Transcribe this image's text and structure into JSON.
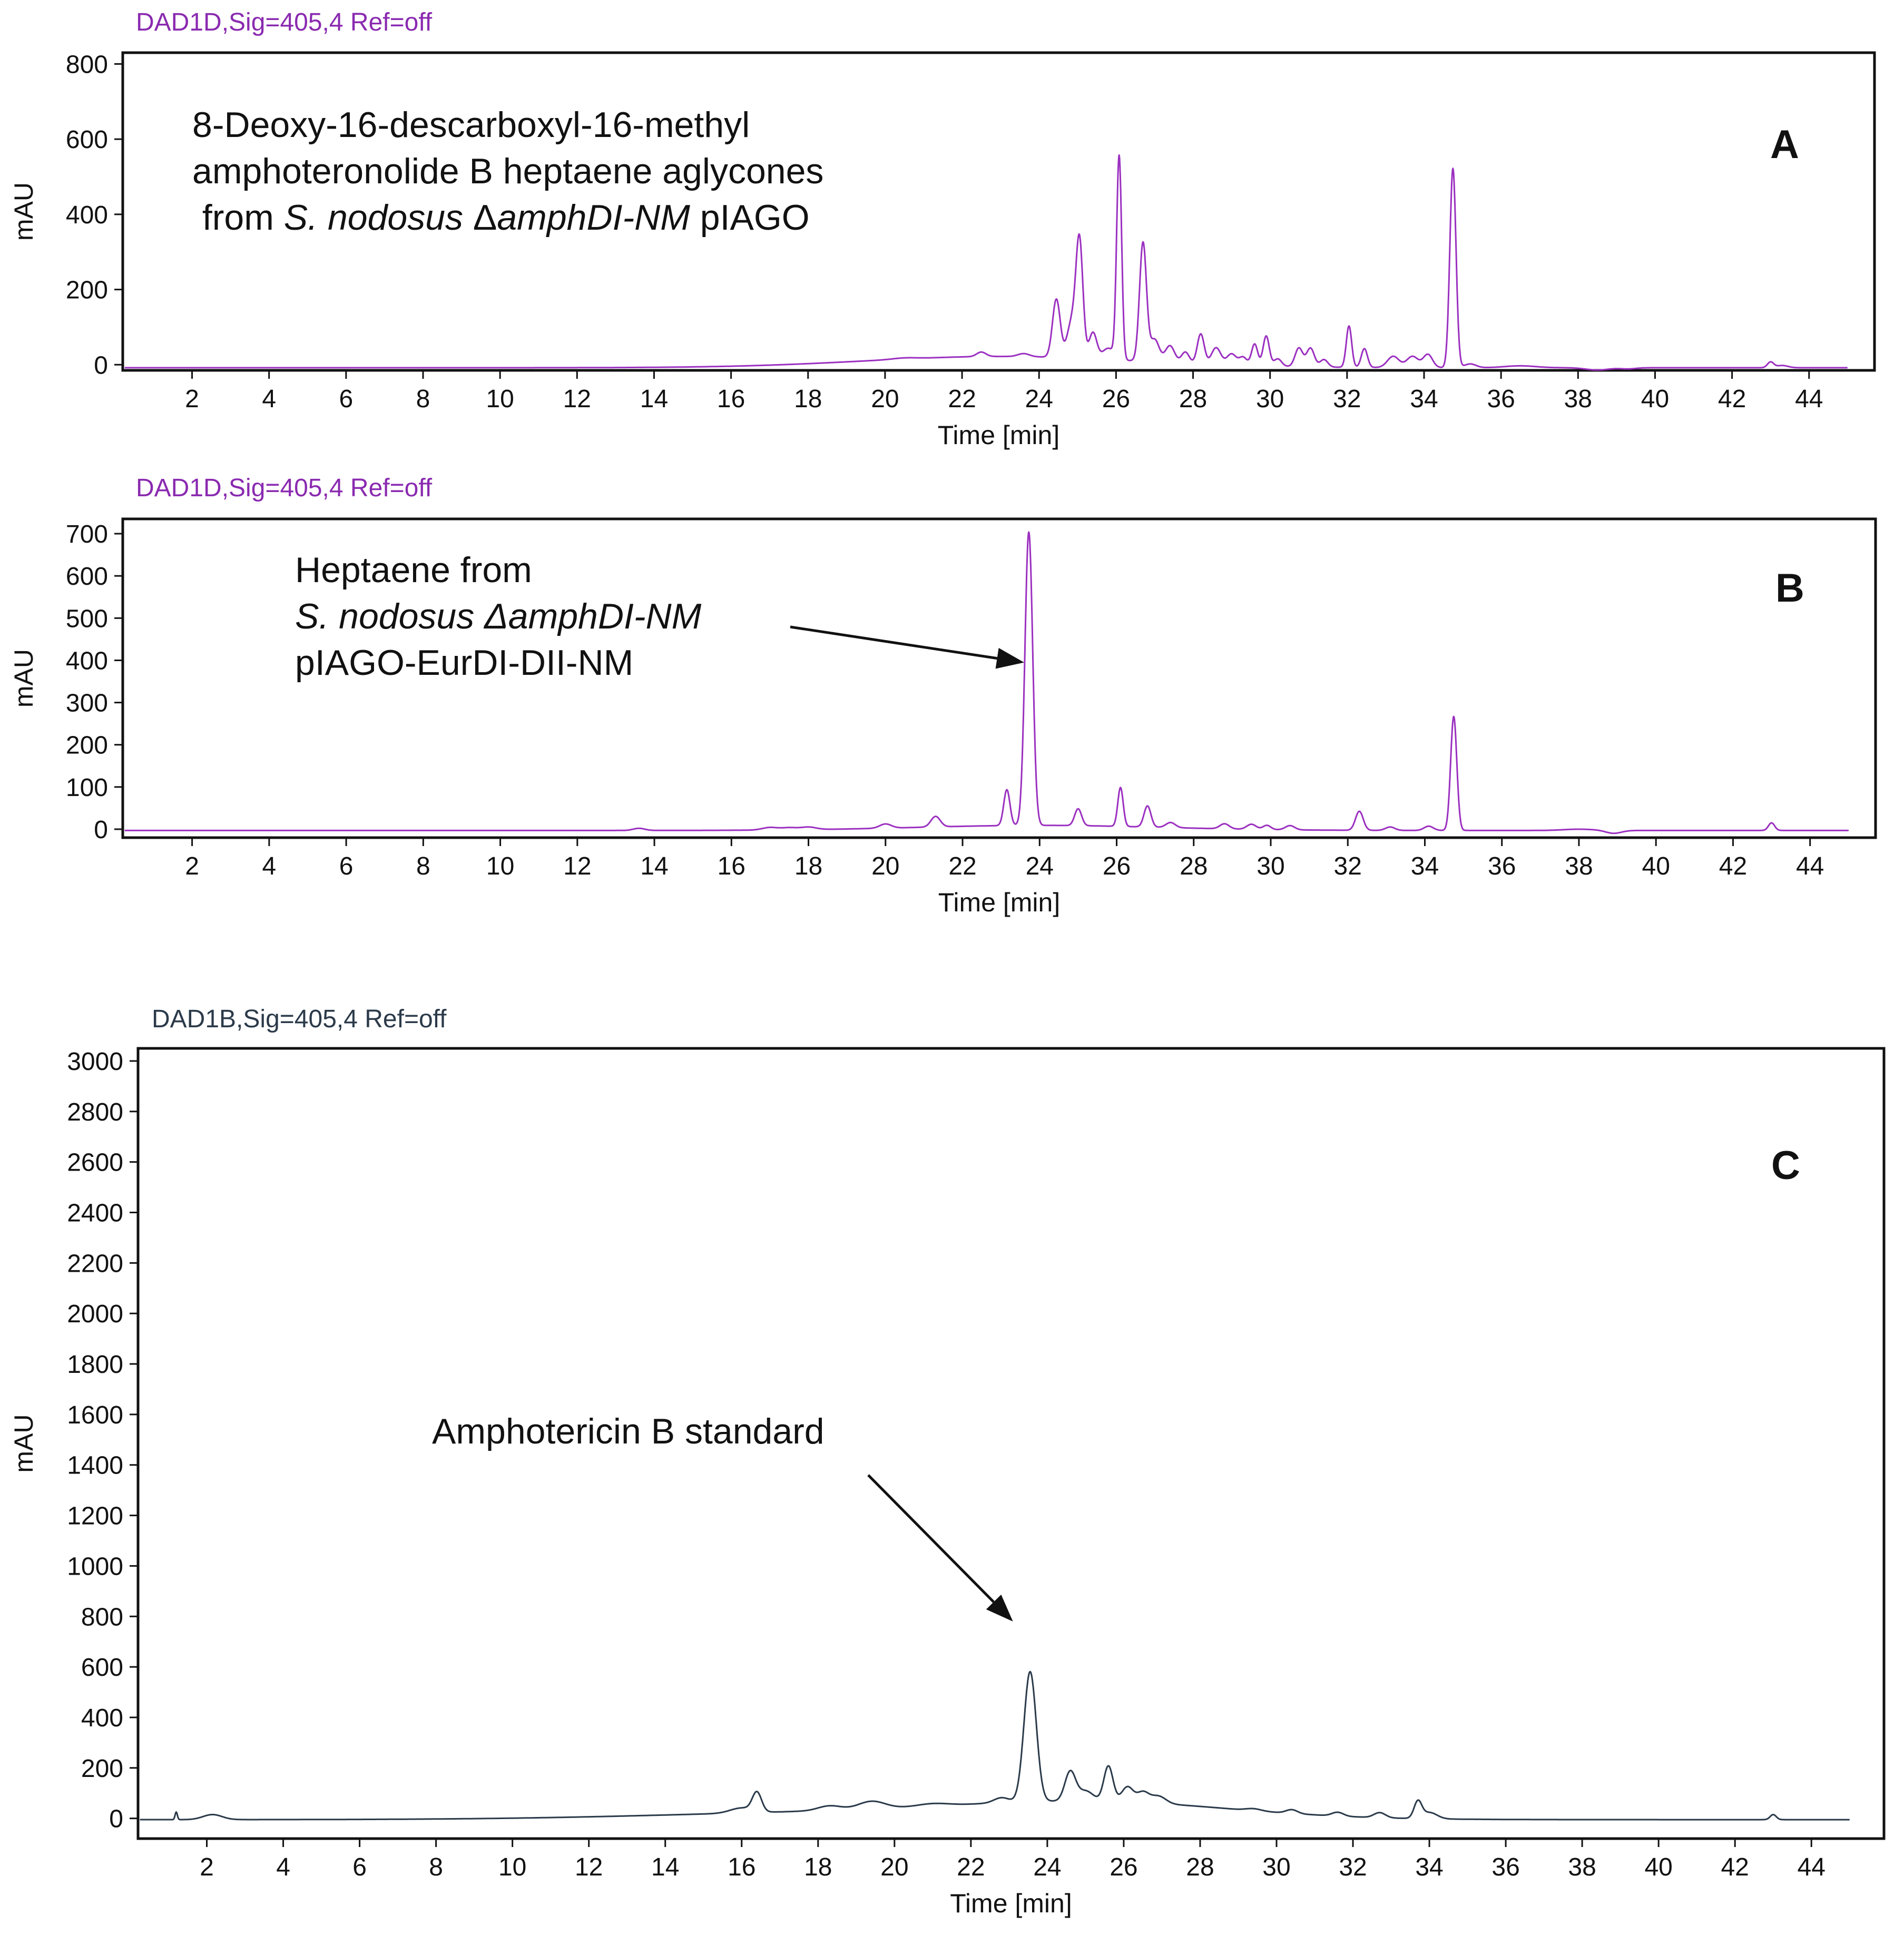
{
  "chart_data": [
    {
      "type": "line",
      "panel": "A",
      "signal": "DAD1D,Sig=405,4  Ref=off",
      "signal_color": "#8a2ab0",
      "line_color": "#9b30c0",
      "xlabel": "Time [min]",
      "ylabel": "mAU",
      "xlim": [
        0.2,
        45.7
      ],
      "ylim": [
        -15,
        830
      ],
      "xticks": [
        2,
        4,
        6,
        8,
        10,
        12,
        14,
        16,
        18,
        20,
        22,
        24,
        26,
        28,
        30,
        32,
        34,
        36,
        38,
        40,
        42,
        44
      ],
      "yticks": [
        0,
        200,
        400,
        600,
        800
      ],
      "annotation": [
        [
          {
            "t": "8-Deoxy-16-descarboxyl-16-methyl"
          }
        ],
        [
          {
            "t": "amphoteronolide B heptaene aglycones"
          }
        ],
        [
          {
            "t": " from "
          },
          {
            "t": "S. nodosus",
            "i": true
          },
          {
            "t": " Δ"
          },
          {
            "t": "amphDI-NM",
            "i": true
          },
          {
            "t": " pIAGO"
          }
        ]
      ],
      "baseline": -8,
      "end": 45,
      "peaks": [
        [
          20.5,
          3,
          0.3
        ],
        [
          22.5,
          12,
          0.12
        ],
        [
          23.6,
          8,
          0.15
        ],
        [
          24.45,
          155,
          0.1
        ],
        [
          24.85,
          95,
          0.12
        ],
        [
          25.05,
          305,
          0.09
        ],
        [
          25.4,
          70,
          0.1
        ],
        [
          25.8,
          30,
          0.15
        ],
        [
          26.08,
          540,
          0.065
        ],
        [
          26.7,
          315,
          0.09
        ],
        [
          27.0,
          60,
          0.12
        ],
        [
          27.4,
          45,
          0.12
        ],
        [
          27.8,
          30,
          0.1
        ],
        [
          28.2,
          80,
          0.09
        ],
        [
          28.6,
          45,
          0.12
        ],
        [
          29.0,
          30,
          0.12
        ],
        [
          29.3,
          22,
          0.1
        ],
        [
          29.6,
          58,
          0.08
        ],
        [
          29.9,
          80,
          0.08
        ],
        [
          30.2,
          20,
          0.1
        ],
        [
          30.75,
          50,
          0.1
        ],
        [
          31.05,
          50,
          0.1
        ],
        [
          31.4,
          20,
          0.1
        ],
        [
          32.05,
          110,
          0.07
        ],
        [
          32.45,
          50,
          0.08
        ],
        [
          33.2,
          30,
          0.15
        ],
        [
          33.7,
          30,
          0.15
        ],
        [
          34.1,
          35,
          0.12
        ],
        [
          34.75,
          530,
          0.08
        ],
        [
          35.2,
          10,
          0.15
        ],
        [
          36.5,
          5,
          0.4
        ],
        [
          38.5,
          -6,
          0.3
        ],
        [
          39.3,
          -3,
          0.2
        ],
        [
          43.0,
          15,
          0.08
        ],
        [
          43.3,
          6,
          0.15
        ]
      ],
      "humps": [
        [
          23,
          30,
          10,
          3.5
        ]
      ],
      "label": "A"
    },
    {
      "type": "line",
      "panel": "B",
      "signal": "DAD1D,Sig=405,4  Ref=off",
      "signal_color": "#8a2ab0",
      "line_color": "#9b30c0",
      "xlabel": "Time [min]",
      "ylabel": "mAU",
      "xlim": [
        0.2,
        45.7
      ],
      "ylim": [
        -20,
        735
      ],
      "xticks": [
        2,
        4,
        6,
        8,
        10,
        12,
        14,
        16,
        18,
        20,
        22,
        24,
        26,
        28,
        30,
        32,
        34,
        36,
        38,
        40,
        42,
        44
      ],
      "yticks": [
        0,
        100,
        200,
        300,
        400,
        500,
        600,
        700
      ],
      "annotation": [
        [
          {
            "t": "Heptaene from"
          }
        ],
        [
          {
            "t": "S. nodosus ΔamphDI-NM",
            "i": true
          }
        ],
        [
          {
            "t": "pIAGO-EurDI-DII-NM"
          }
        ]
      ],
      "arrow_target": [
        23.6,
        395
      ],
      "baseline": -3,
      "end": 45,
      "peaks": [
        [
          13.6,
          5,
          0.15
        ],
        [
          17.0,
          6,
          0.2
        ],
        [
          17.5,
          5,
          0.2
        ],
        [
          18.0,
          6,
          0.2
        ],
        [
          20.0,
          10,
          0.15
        ],
        [
          21.3,
          25,
          0.12
        ],
        [
          23.15,
          85,
          0.08
        ],
        [
          23.72,
          695,
          0.1
        ],
        [
          25.0,
          40,
          0.09
        ],
        [
          26.1,
          92,
          0.07
        ],
        [
          26.8,
          50,
          0.09
        ],
        [
          27.4,
          12,
          0.12
        ],
        [
          28.8,
          12,
          0.12
        ],
        [
          29.5,
          12,
          0.12
        ],
        [
          29.9,
          10,
          0.1
        ],
        [
          30.5,
          10,
          0.12
        ],
        [
          32.3,
          45,
          0.1
        ],
        [
          33.1,
          8,
          0.12
        ],
        [
          34.1,
          10,
          0.12
        ],
        [
          34.75,
          270,
          0.08
        ],
        [
          38.0,
          3,
          0.4
        ],
        [
          38.9,
          -7,
          0.2
        ],
        [
          43.0,
          18,
          0.08
        ]
      ],
      "humps": [
        [
          24,
          12,
          6,
          3.2
        ]
      ],
      "label": "B"
    },
    {
      "type": "line",
      "panel": "C",
      "signal": "DAD1B,Sig=405,4  Ref=off",
      "signal_color": "#2b3a4a",
      "line_color": "#2a3a4a",
      "xlabel": "Time [min]",
      "ylabel": "mAU",
      "xlim": [
        0.2,
        45.9
      ],
      "ylim": [
        -80,
        3050
      ],
      "xticks": [
        2,
        4,
        6,
        8,
        10,
        12,
        14,
        16,
        18,
        20,
        22,
        24,
        26,
        28,
        30,
        32,
        34,
        36,
        38,
        40,
        42,
        44
      ],
      "yticks": [
        0,
        200,
        400,
        600,
        800,
        1000,
        1200,
        1400,
        1600,
        1800,
        2000,
        2200,
        2400,
        2600,
        2800,
        3000
      ],
      "annotation": [
        [
          {
            "t": "Amphotericin B standard"
          }
        ]
      ],
      "arrow_target": [
        23.1,
        780
      ],
      "baseline": -5,
      "end": 45,
      "peaks": [
        [
          1.2,
          30,
          0.03
        ],
        [
          2.15,
          20,
          0.25
        ],
        [
          16.4,
          75,
          0.12
        ],
        [
          16.0,
          20,
          0.3
        ],
        [
          18.3,
          18,
          0.3
        ],
        [
          19.4,
          30,
          0.35
        ],
        [
          21.0,
          10,
          0.4
        ],
        [
          22.8,
          20,
          0.2
        ],
        [
          23.55,
          515,
          0.16
        ],
        [
          24.6,
          115,
          0.14
        ],
        [
          25.0,
          40,
          0.2
        ],
        [
          25.6,
          140,
          0.12
        ],
        [
          26.1,
          60,
          0.15
        ],
        [
          26.5,
          40,
          0.15
        ],
        [
          26.9,
          30,
          0.2
        ],
        [
          29.4,
          8,
          0.2
        ],
        [
          30.4,
          15,
          0.15
        ],
        [
          31.6,
          15,
          0.15
        ],
        [
          32.7,
          20,
          0.15
        ],
        [
          33.7,
          65,
          0.1
        ],
        [
          34.0,
          25,
          0.2
        ],
        [
          43.0,
          20,
          0.08
        ]
      ],
      "humps": [
        [
          19,
          30,
          24,
          5
        ],
        [
          25.5,
          60,
          14,
          3.5
        ]
      ],
      "label": "C"
    }
  ]
}
